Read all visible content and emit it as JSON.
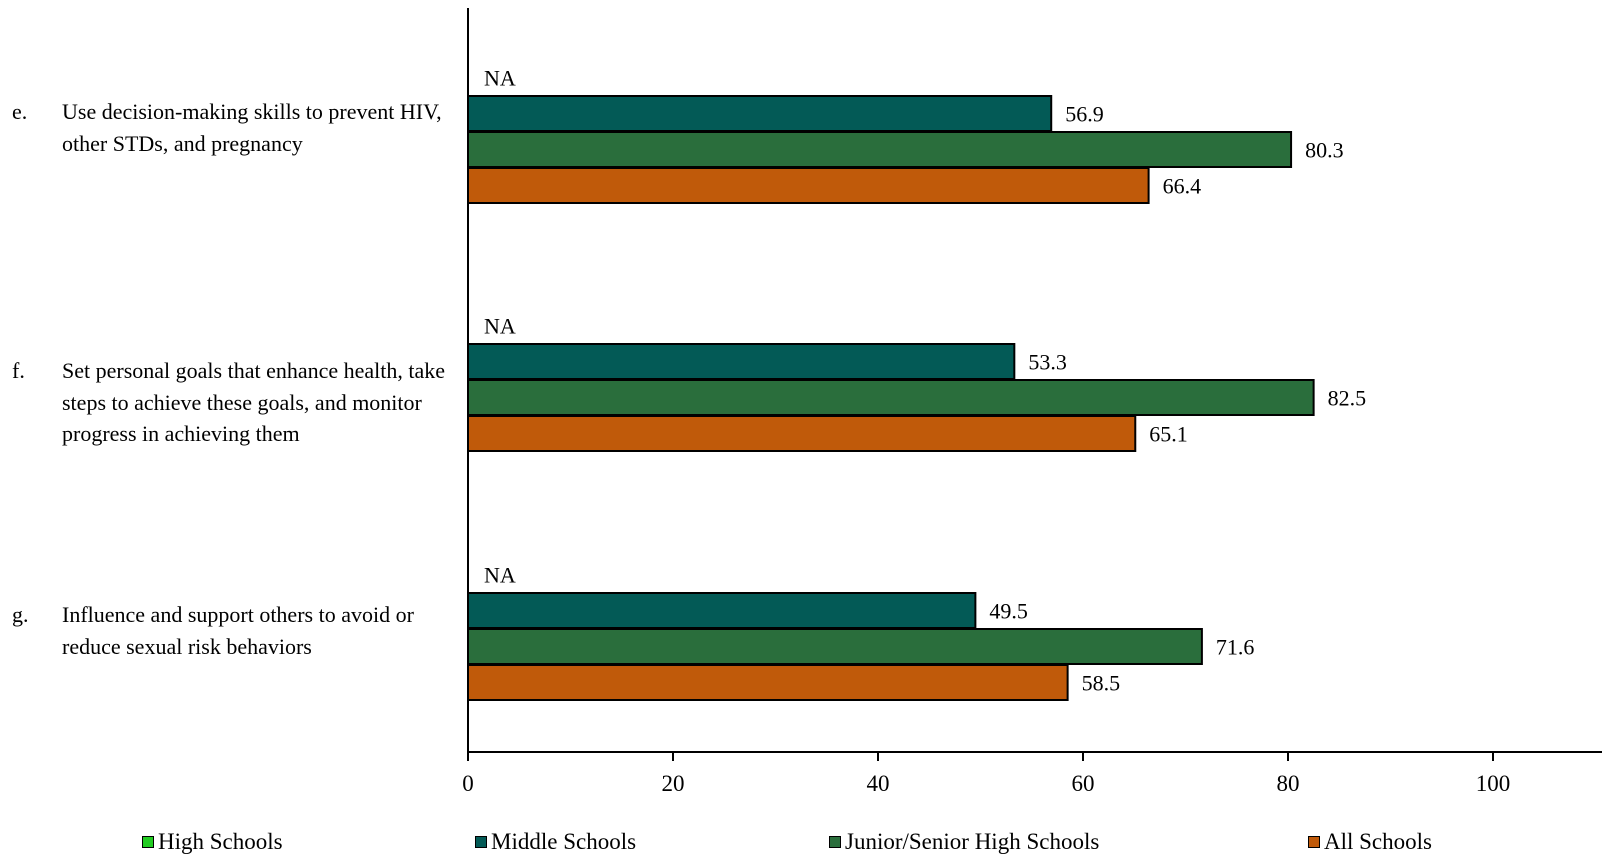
{
  "chart_data": {
    "type": "bar",
    "orientation": "horizontal",
    "categories": [
      {
        "letter": "e.",
        "label": "Use decision-making skills to prevent HIV, other STDs, and pregnancy"
      },
      {
        "letter": "f.",
        "label": "Set personal goals that enhance health, take steps to achieve these goals, and monitor progress in achieving them"
      },
      {
        "letter": "g.",
        "label": "Influence and support others to avoid or reduce sexual risk behaviors"
      }
    ],
    "series": [
      {
        "name": "High Schools",
        "color": "#22cc22",
        "values": [
          null,
          null,
          null
        ],
        "labels": [
          "NA",
          "NA",
          "NA"
        ]
      },
      {
        "name": "Middle Schools",
        "color": "#035a56",
        "values": [
          56.9,
          53.3,
          49.5
        ],
        "labels": [
          "56.9",
          "53.3",
          "49.5"
        ]
      },
      {
        "name": "Junior/Senior High Schools",
        "color": "#2a6e3c",
        "values": [
          80.3,
          82.5,
          71.6
        ],
        "labels": [
          "80.3",
          "82.5",
          "71.6"
        ]
      },
      {
        "name": "All Schools",
        "color": "#c05a0a",
        "values": [
          66.4,
          65.1,
          58.5
        ],
        "labels": [
          "66.4",
          "65.1",
          "58.5"
        ]
      }
    ],
    "xlim": [
      0,
      100
    ],
    "xticks": [
      "0",
      "20",
      "40",
      "60",
      "80",
      "100"
    ],
    "grid": false,
    "legend_position": "bottom"
  }
}
